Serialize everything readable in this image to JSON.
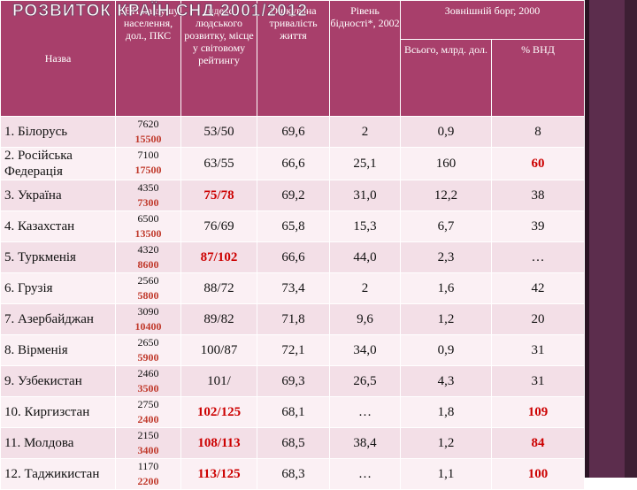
{
  "slide": {
    "title": "РОЗВИТОК КРАЇН СНД  2001/2012"
  },
  "colors": {
    "header_bg": "#a83f6b",
    "row_odd": "#f3dfe7",
    "row_even": "#fbf0f4",
    "highlight": "#cc0000",
    "sidebar": "#5c2d4d"
  },
  "table": {
    "headers": {
      "name": "Назва",
      "gdp": "ВВП на душу населення, дол., ПКС",
      "hdi": "Індекс людського розвитку, місце у світовому рейтингу",
      "life": "Очікувана тривалість життя",
      "poverty": "Рівень бідності*, 2002",
      "debt": "Зовнішній борг, 2000",
      "debt_total": "Всього, млрд. дол.",
      "debt_gni": "% ВНД"
    },
    "rows": [
      {
        "name": "1. Білорусь",
        "gdp_a": "7620",
        "gdp_b": "15500",
        "hdi": "53/50",
        "life": "69,6",
        "poverty": "2",
        "debt_total": "0,9",
        "debt_gni": "8"
      },
      {
        "name": "2. Російська Федерація",
        "gdp_a": "7100",
        "gdp_b": "17500",
        "hdi": "63/55",
        "life": "66,6",
        "poverty": "25,1",
        "debt_total": "160",
        "debt_gni": "60"
      },
      {
        "name": "3. Україна",
        "gdp_a": "4350",
        "gdp_b": "7300",
        "hdi": "75/78",
        "life": "69,2",
        "poverty": "31,0",
        "debt_total": "12,2",
        "debt_gni": "38"
      },
      {
        "name": "4. Казахстан",
        "gdp_a": "6500",
        "gdp_b": "13500",
        "hdi": "76/69",
        "life": "65,8",
        "poverty": "15,3",
        "debt_total": "6,7",
        "debt_gni": "39"
      },
      {
        "name": "5. Туркменія",
        "gdp_a": "4320",
        "gdp_b": "8600",
        "hdi": "87/102",
        "life": "66,6",
        "poverty": "44,0",
        "debt_total": "2,3",
        "debt_gni": "…"
      },
      {
        "name": "6. Грузія",
        "gdp_a": "2560",
        "gdp_b": "5800",
        "hdi": "88/72",
        "life": "73,4",
        "poverty": "2",
        "debt_total": "1,6",
        "debt_gni": "42"
      },
      {
        "name": "7. Азербайджан",
        "gdp_a": "3090",
        "gdp_b": "10400",
        "hdi": "89/82",
        "life": "71,8",
        "poverty": "9,6",
        "debt_total": "1,2",
        "debt_gni": "20"
      },
      {
        "name": "8. Вірменія",
        "gdp_a": "2650",
        "gdp_b": "5900",
        "hdi": "100/87",
        "life": "72,1",
        "poverty": "34,0",
        "debt_total": "0,9",
        "debt_gni": "31"
      },
      {
        "name": "9. Узбекистан",
        "gdp_a": "2460",
        "gdp_b": "3500",
        "hdi": "101/",
        "life": "69,3",
        "poverty": "26,5",
        "debt_total": "4,3",
        "debt_gni": "31"
      },
      {
        "name": "10. Киргизстан",
        "gdp_a": "2750",
        "gdp_b": "2400",
        "hdi": "102/125",
        "life": "68,1",
        "poverty": "…",
        "debt_total": "1,8",
        "debt_gni": "109"
      },
      {
        "name": "11. Молдова",
        "gdp_a": "2150",
        "gdp_b": "3400",
        "hdi": "108/113",
        "life": "68,5",
        "poverty": "38,4",
        "debt_total": "1,2",
        "debt_gni": "84"
      },
      {
        "name": "12. Таджикистан",
        "gdp_a": "1170",
        "gdp_b": "2200",
        "hdi": "113/125",
        "life": "68,3",
        "poverty": "…",
        "debt_total": "1,1",
        "debt_gni": "100"
      }
    ],
    "highlighted_hdi": [
      "75/78",
      "87/102",
      "102/125",
      "108/113",
      "113/125"
    ],
    "highlighted_debt_gni": [
      "60",
      "109",
      "84",
      "100"
    ]
  }
}
